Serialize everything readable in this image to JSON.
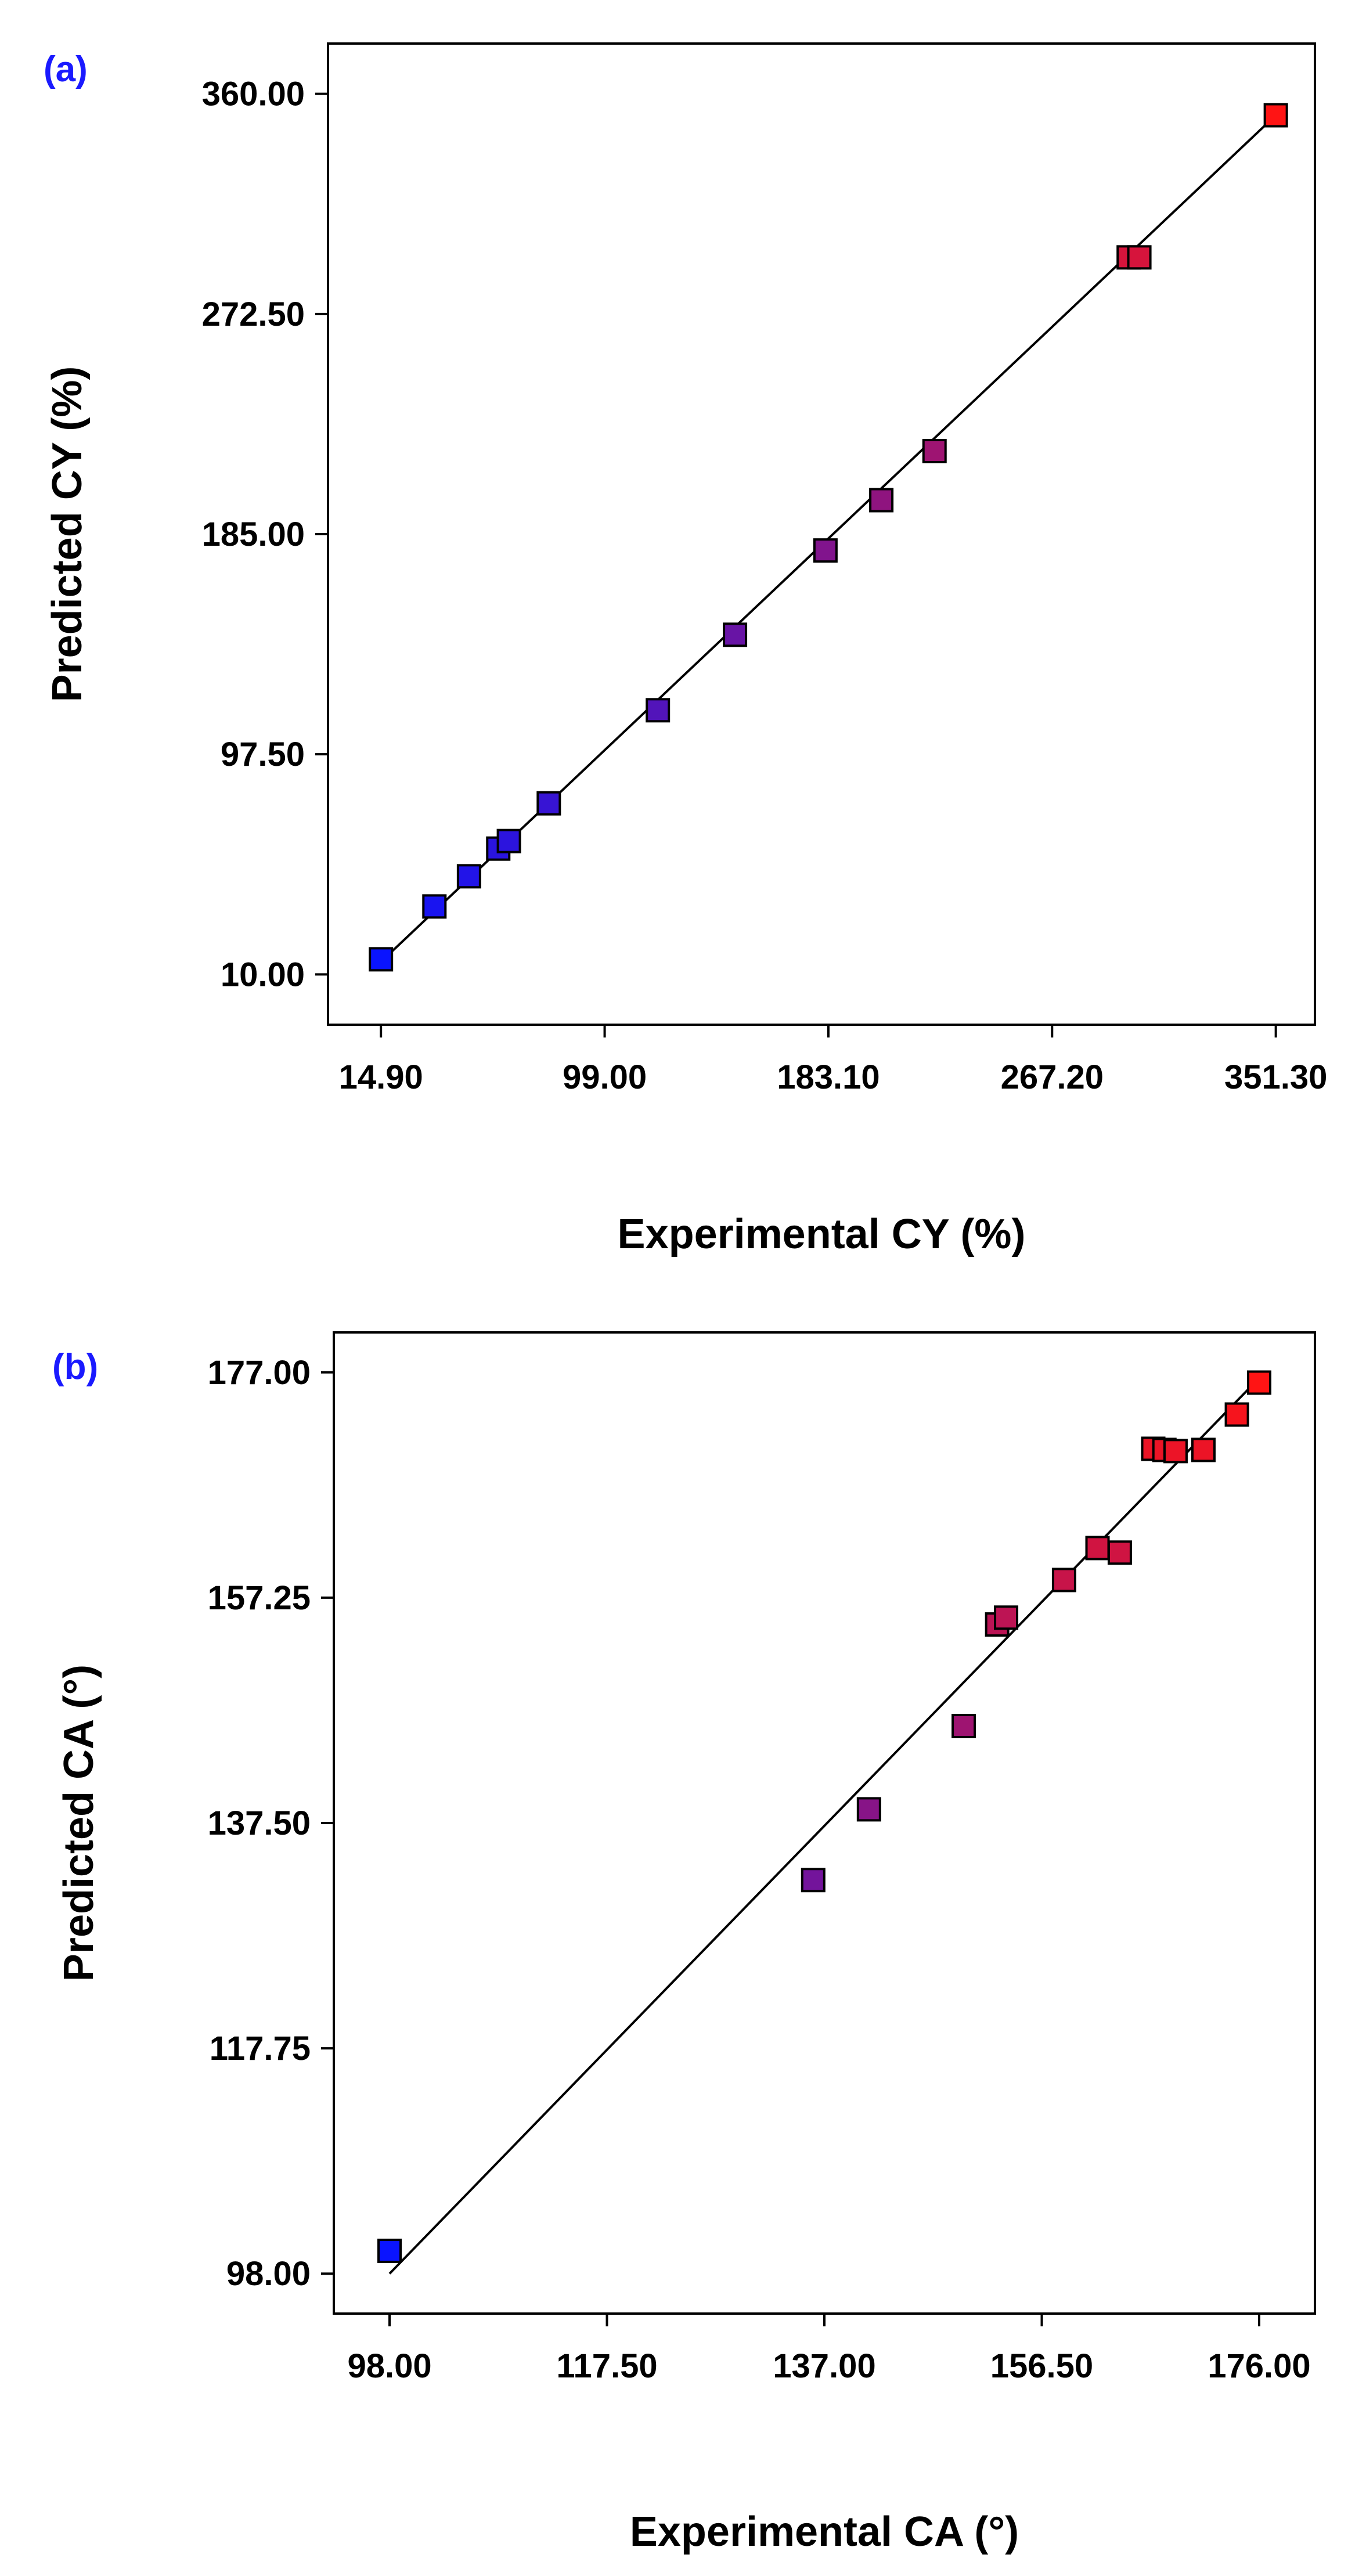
{
  "figure": {
    "panels": [
      {
        "panel_label": "(a)",
        "panel_label_color": "#1a1aff"
      },
      {
        "panel_label": "(b)",
        "panel_label_color": "#1a1aff"
      }
    ]
  },
  "chart_data": [
    {
      "type": "scatter",
      "title": "",
      "xlabel": "Experimental CY (%)",
      "ylabel": "Predicted CY (%)",
      "xlim": [
        -5.0,
        366.0
      ],
      "ylim": [
        -10.0,
        380.0
      ],
      "x_ticks": [
        14.9,
        99.0,
        183.1,
        267.2,
        351.3
      ],
      "x_tick_labels": [
        "14.90",
        "99.00",
        "183.10",
        "267.20",
        "351.30"
      ],
      "y_ticks": [
        10.0,
        97.5,
        185.0,
        272.5,
        360.0
      ],
      "y_tick_labels": [
        "10.00",
        "97.50",
        "185.00",
        "272.50",
        "360.00"
      ],
      "fit_line": {
        "x": [
          14.9,
          351.3
        ],
        "y": [
          15.0,
          351.5
        ]
      },
      "x": [
        14.9,
        35.0,
        48.0,
        59.0,
        63.0,
        78.0,
        119.0,
        148.0,
        182.0,
        203.0,
        223.0,
        296.0,
        300.0,
        351.3
      ],
      "y": [
        16.0,
        37.0,
        49.0,
        60.0,
        63.0,
        78.0,
        115.0,
        145.0,
        178.5,
        198.5,
        218.0,
        295.0,
        295.0,
        351.5
      ],
      "color_low": "#0a14ff",
      "color_high": "#ff1414",
      "grid": false
    },
    {
      "type": "scatter",
      "title": "",
      "xlabel": "Experimental CA (°)",
      "ylabel": "Predicted CA (°)",
      "xlim": [
        93.0,
        181.0
      ],
      "ylim": [
        94.5,
        180.5
      ],
      "x_ticks": [
        98.0,
        117.5,
        137.0,
        156.5,
        176.0
      ],
      "x_tick_labels": [
        "98.00",
        "117.50",
        "137.00",
        "156.50",
        "176.00"
      ],
      "y_ticks": [
        98.0,
        117.75,
        137.5,
        157.25,
        177.0
      ],
      "y_tick_labels": [
        "98.00",
        "117.75",
        "137.50",
        "157.25",
        "177.00"
      ],
      "fit_line": {
        "x": [
          98.0,
          176.0
        ],
        "y": [
          98.0,
          176.5
        ]
      },
      "x": [
        98.0,
        136.0,
        141.0,
        149.5,
        152.5,
        153.3,
        158.5,
        161.5,
        163.5,
        166.5,
        167.5,
        168.5,
        171.0,
        174.0,
        176.0
      ],
      "y": [
        100.0,
        132.5,
        138.7,
        146.0,
        154.9,
        155.5,
        158.8,
        161.6,
        161.2,
        170.3,
        170.2,
        170.1,
        170.2,
        173.3,
        176.1
      ],
      "color_low": "#0a14ff",
      "color_high": "#ff1414",
      "grid": false
    }
  ]
}
